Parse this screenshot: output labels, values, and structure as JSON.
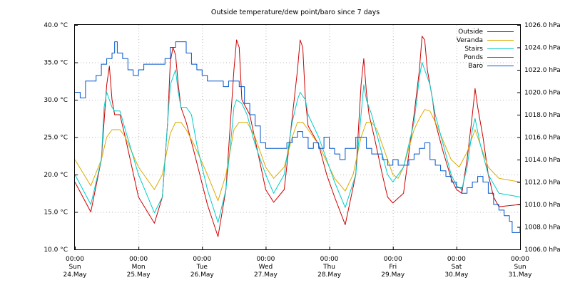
{
  "chart_data": {
    "type": "line",
    "title": "Outside temperature/dew point/baro since 7 days",
    "x_range_hours": [
      0,
      168
    ],
    "y_left": {
      "unit": "°C",
      "range": [
        10,
        40
      ],
      "ticks": [
        "10.0 °C",
        "15.0 °C",
        "20.0 °C",
        "25.0 °C",
        "30.0 °C",
        "35.0 °C",
        "40.0 °C"
      ]
    },
    "y_right": {
      "unit": "hPa",
      "range": [
        1006,
        1026
      ],
      "ticks": [
        "1006.0 hPa",
        "1008.0 hPa",
        "1010.0 hPa",
        "1012.0 hPa",
        "1014.0 hPa",
        "1016.0 hPa",
        "1018.0 hPa",
        "1020.0 hPa",
        "1022.0 hPa",
        "1024.0 hPa",
        "1026.0 hPa"
      ]
    },
    "x_ticks": [
      {
        "time": "00:00",
        "day": "Sun",
        "date": "24.May"
      },
      {
        "time": "00:00",
        "day": "Mon",
        "date": "25.May"
      },
      {
        "time": "00:00",
        "day": "Tue",
        "date": "26.May"
      },
      {
        "time": "00:00",
        "day": "Wed",
        "date": "27.May"
      },
      {
        "time": "00:00",
        "day": "Thu",
        "date": "28.May"
      },
      {
        "time": "00:00",
        "day": "Fri",
        "date": "29.May"
      },
      {
        "time": "00:00",
        "day": "Sat",
        "date": "30.May"
      },
      {
        "time": "00:00",
        "day": "Sun",
        "date": "31.May"
      }
    ],
    "grid": true,
    "legend_position": "top-right",
    "series": [
      {
        "name": "Outside",
        "color": "#cc0000",
        "axis": "left",
        "points": [
          [
            0,
            19
          ],
          [
            6,
            15
          ],
          [
            10,
            22
          ],
          [
            12,
            32
          ],
          [
            13,
            34.5
          ],
          [
            14,
            30
          ],
          [
            15,
            28
          ],
          [
            17,
            28
          ],
          [
            19,
            25
          ],
          [
            24,
            17
          ],
          [
            30,
            13.5
          ],
          [
            33,
            17
          ],
          [
            35,
            27
          ],
          [
            36,
            35
          ],
          [
            37,
            37
          ],
          [
            38,
            36
          ],
          [
            39,
            32
          ],
          [
            40,
            29
          ],
          [
            42,
            27
          ],
          [
            45,
            23
          ],
          [
            50,
            16
          ],
          [
            54,
            11.7
          ],
          [
            57,
            18
          ],
          [
            60,
            34
          ],
          [
            61,
            38
          ],
          [
            62,
            37
          ],
          [
            63,
            30
          ],
          [
            66,
            28
          ],
          [
            69,
            23
          ],
          [
            72,
            18
          ],
          [
            75,
            16.3
          ],
          [
            79,
            18
          ],
          [
            84,
            34
          ],
          [
            85,
            38
          ],
          [
            86,
            37
          ],
          [
            87,
            30
          ],
          [
            88,
            26.5
          ],
          [
            92,
            24
          ],
          [
            95,
            20
          ],
          [
            98,
            17
          ],
          [
            102,
            13.3
          ],
          [
            106,
            20
          ],
          [
            108,
            32
          ],
          [
            109,
            35.5
          ],
          [
            110,
            31
          ],
          [
            111,
            28
          ],
          [
            113,
            25
          ],
          [
            116,
            20
          ],
          [
            118,
            17
          ],
          [
            120,
            16.2
          ],
          [
            124,
            17.5
          ],
          [
            128,
            28
          ],
          [
            130,
            34
          ],
          [
            131,
            38.5
          ],
          [
            132,
            38
          ],
          [
            133,
            34
          ],
          [
            135,
            30
          ],
          [
            136,
            27
          ],
          [
            139,
            23
          ],
          [
            142,
            19.5
          ],
          [
            144,
            18
          ],
          [
            146,
            17.5
          ],
          [
            148,
            22
          ],
          [
            150,
            28
          ],
          [
            151,
            31.5
          ],
          [
            152,
            29
          ],
          [
            154,
            25
          ],
          [
            156,
            20
          ],
          [
            158,
            17
          ],
          [
            160,
            15.7
          ],
          [
            168,
            16
          ]
        ]
      },
      {
        "name": "Veranda",
        "color": "#ddaa00",
        "axis": "left",
        "points": [
          [
            0,
            22
          ],
          [
            6,
            18.5
          ],
          [
            10,
            22
          ],
          [
            12,
            25
          ],
          [
            14,
            26
          ],
          [
            17,
            26
          ],
          [
            19,
            25
          ],
          [
            24,
            21
          ],
          [
            30,
            18
          ],
          [
            33,
            20
          ],
          [
            36,
            25.5
          ],
          [
            38,
            27
          ],
          [
            40,
            27
          ],
          [
            42,
            26
          ],
          [
            45,
            24
          ],
          [
            50,
            20
          ],
          [
            54,
            16.5
          ],
          [
            57,
            20
          ],
          [
            60,
            26
          ],
          [
            62,
            27
          ],
          [
            65,
            27
          ],
          [
            68,
            25
          ],
          [
            72,
            21
          ],
          [
            75,
            19.5
          ],
          [
            79,
            21
          ],
          [
            82,
            25
          ],
          [
            84,
            27
          ],
          [
            86,
            27
          ],
          [
            88,
            26
          ],
          [
            92,
            24
          ],
          [
            96,
            21
          ],
          [
            98,
            19.5
          ],
          [
            102,
            17.8
          ],
          [
            105,
            20
          ],
          [
            108,
            25
          ],
          [
            110,
            27
          ],
          [
            112,
            27
          ],
          [
            114,
            26
          ],
          [
            117,
            23
          ],
          [
            120,
            20
          ],
          [
            122,
            19.5
          ],
          [
            124,
            21
          ],
          [
            128,
            26
          ],
          [
            130,
            27.5
          ],
          [
            132,
            28.7
          ],
          [
            134,
            28.5
          ],
          [
            136,
            27
          ],
          [
            139,
            24.5
          ],
          [
            142,
            22
          ],
          [
            145,
            21
          ],
          [
            148,
            23
          ],
          [
            150,
            25
          ],
          [
            151,
            26
          ],
          [
            153,
            24
          ],
          [
            156,
            21
          ],
          [
            160,
            19.5
          ],
          [
            168,
            19
          ]
        ]
      },
      {
        "name": "Stairs",
        "color": "#00cccc",
        "axis": "left",
        "points": [
          [
            0,
            20
          ],
          [
            6,
            16
          ],
          [
            10,
            22
          ],
          [
            11,
            29
          ],
          [
            12,
            31
          ],
          [
            13,
            30
          ],
          [
            14,
            29
          ],
          [
            15,
            28.5
          ],
          [
            17,
            28.5
          ],
          [
            19,
            26
          ],
          [
            24,
            20
          ],
          [
            30,
            14.9
          ],
          [
            33,
            17
          ],
          [
            35,
            27
          ],
          [
            36,
            32
          ],
          [
            38,
            34
          ],
          [
            39,
            31
          ],
          [
            40,
            29
          ],
          [
            42,
            29
          ],
          [
            44,
            28
          ],
          [
            46,
            24
          ],
          [
            50,
            18
          ],
          [
            54,
            13.6
          ],
          [
            57,
            18
          ],
          [
            59,
            25
          ],
          [
            60,
            29
          ],
          [
            61,
            30
          ],
          [
            63,
            29.5
          ],
          [
            65,
            28
          ],
          [
            68,
            24
          ],
          [
            72,
            20
          ],
          [
            75,
            17.5
          ],
          [
            79,
            20
          ],
          [
            82,
            27
          ],
          [
            84,
            30
          ],
          [
            85,
            31
          ],
          [
            87,
            30
          ],
          [
            88,
            28
          ],
          [
            92,
            25
          ],
          [
            96,
            21
          ],
          [
            98,
            19
          ],
          [
            102,
            15.6
          ],
          [
            106,
            20
          ],
          [
            108,
            28
          ],
          [
            109,
            32
          ],
          [
            110,
            30
          ],
          [
            112,
            28
          ],
          [
            115,
            24
          ],
          [
            118,
            20
          ],
          [
            120,
            19
          ],
          [
            124,
            21
          ],
          [
            128,
            27
          ],
          [
            130,
            33
          ],
          [
            131,
            35
          ],
          [
            132,
            34
          ],
          [
            134,
            32
          ],
          [
            136,
            28
          ],
          [
            139,
            24
          ],
          [
            142,
            20
          ],
          [
            144,
            18.5
          ],
          [
            146,
            18
          ],
          [
            148,
            21
          ],
          [
            150,
            26
          ],
          [
            151,
            27.5
          ],
          [
            153,
            24
          ],
          [
            156,
            20
          ],
          [
            160,
            17.5
          ],
          [
            168,
            17
          ]
        ]
      },
      {
        "name": "Ponds",
        "color": "#cc3333",
        "axis": "left",
        "points": []
      },
      {
        "name": "Baro",
        "color": "#0055cc",
        "axis": "right",
        "points": [
          [
            0,
            1020
          ],
          [
            2,
            1019.5
          ],
          [
            4,
            1021
          ],
          [
            8,
            1021.5
          ],
          [
            10,
            1022.5
          ],
          [
            12,
            1023
          ],
          [
            14,
            1023.5
          ],
          [
            15,
            1024.5
          ],
          [
            16,
            1023.5
          ],
          [
            18,
            1023
          ],
          [
            20,
            1022
          ],
          [
            22,
            1021.5
          ],
          [
            24,
            1022
          ],
          [
            26,
            1022.5
          ],
          [
            30,
            1022.5
          ],
          [
            33,
            1022.5
          ],
          [
            34,
            1023
          ],
          [
            36,
            1024
          ],
          [
            38,
            1024.5
          ],
          [
            40,
            1024.5
          ],
          [
            42,
            1023.5
          ],
          [
            44,
            1022.5
          ],
          [
            46,
            1022
          ],
          [
            48,
            1021.5
          ],
          [
            50,
            1021
          ],
          [
            54,
            1021
          ],
          [
            56,
            1020.5
          ],
          [
            58,
            1021
          ],
          [
            60,
            1021
          ],
          [
            62,
            1020.5
          ],
          [
            64,
            1019
          ],
          [
            66,
            1018
          ],
          [
            68,
            1017
          ],
          [
            70,
            1015.5
          ],
          [
            72,
            1015
          ],
          [
            76,
            1015
          ],
          [
            80,
            1015.5
          ],
          [
            82,
            1016
          ],
          [
            84,
            1016.5
          ],
          [
            86,
            1016
          ],
          [
            88,
            1015
          ],
          [
            90,
            1015.5
          ],
          [
            92,
            1015
          ],
          [
            94,
            1016
          ],
          [
            96,
            1015
          ],
          [
            98,
            1014.5
          ],
          [
            100,
            1014
          ],
          [
            102,
            1015
          ],
          [
            104,
            1015
          ],
          [
            106,
            1016
          ],
          [
            108,
            1016
          ],
          [
            110,
            1015
          ],
          [
            112,
            1014.5
          ],
          [
            114,
            1014.5
          ],
          [
            116,
            1014
          ],
          [
            118,
            1013.5
          ],
          [
            120,
            1014
          ],
          [
            122,
            1013.5
          ],
          [
            124,
            1013.5
          ],
          [
            126,
            1014
          ],
          [
            128,
            1014.5
          ],
          [
            130,
            1015
          ],
          [
            132,
            1015.5
          ],
          [
            134,
            1014
          ],
          [
            136,
            1013.5
          ],
          [
            138,
            1013
          ],
          [
            140,
            1012.5
          ],
          [
            142,
            1012
          ],
          [
            144,
            1011.5
          ],
          [
            146,
            1011
          ],
          [
            148,
            1011.5
          ],
          [
            150,
            1012
          ],
          [
            152,
            1012.5
          ],
          [
            154,
            1012
          ],
          [
            156,
            1011
          ],
          [
            158,
            1010
          ],
          [
            160,
            1009.5
          ],
          [
            162,
            1009
          ],
          [
            164,
            1008.5
          ],
          [
            165,
            1007.5
          ],
          [
            167,
            1007.5
          ],
          [
            168,
            1008
          ]
        ]
      }
    ]
  }
}
